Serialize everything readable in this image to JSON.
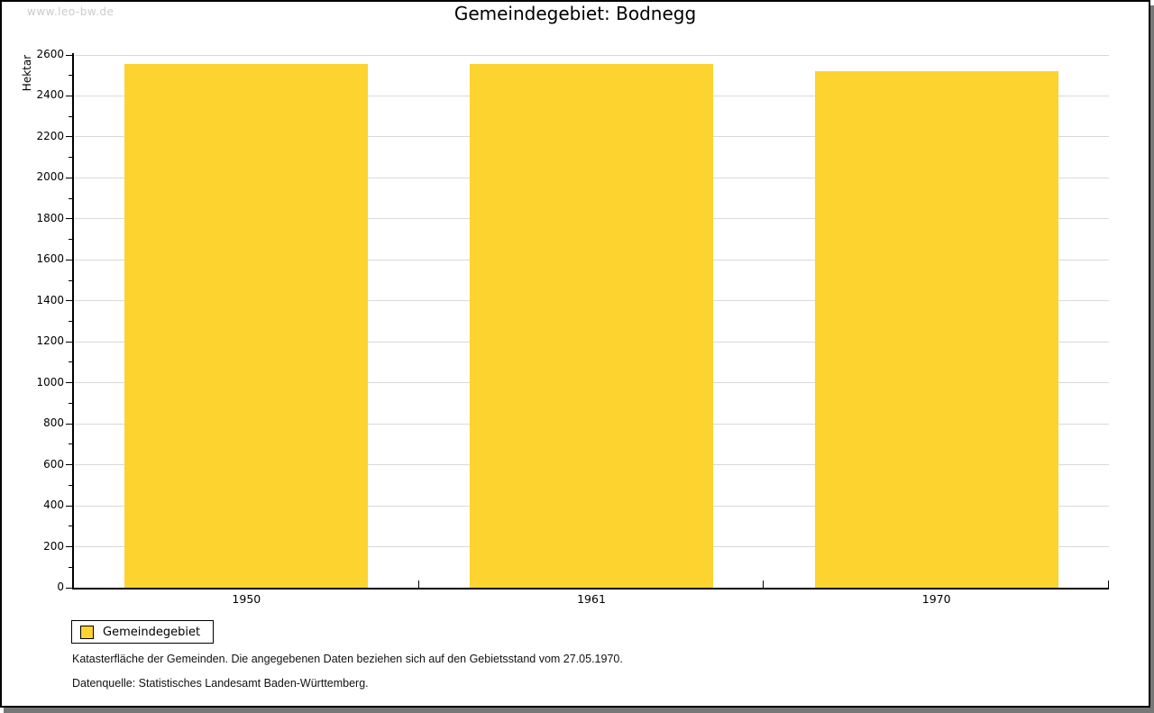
{
  "watermark": "www.leo-bw.de",
  "header": {
    "title": "Gemeindegebiet: Bodnegg"
  },
  "chart_data": {
    "type": "bar",
    "title": "Gemeindegebiet: Bodnegg",
    "categories": [
      "1950",
      "1961",
      "1970"
    ],
    "series": [
      {
        "name": "Gemeindegebiet",
        "values": [
          2555,
          2558,
          2521
        ],
        "color": "#fcd32f"
      }
    ],
    "xlabel": "",
    "ylabel": "Hektar",
    "ylim": [
      0,
      2600
    ],
    "ytick_step": 200,
    "yminor_tick_step": 100,
    "grid": "horizontal",
    "gridline_color": "#d9d9d9",
    "axis_color": "#000000",
    "legend_position": "bottom-left"
  },
  "legend": {
    "items": [
      {
        "label": "Gemeindegebiet",
        "color": "#fcd32f"
      }
    ]
  },
  "notes": {
    "line1": "Katasterfläche der Gemeinden. Die angegebenen Daten beziehen sich auf den Gebietsstand vom 27.05.1970.",
    "line2": "Datenquelle: Statistisches Landesamt Baden-Württemberg."
  }
}
